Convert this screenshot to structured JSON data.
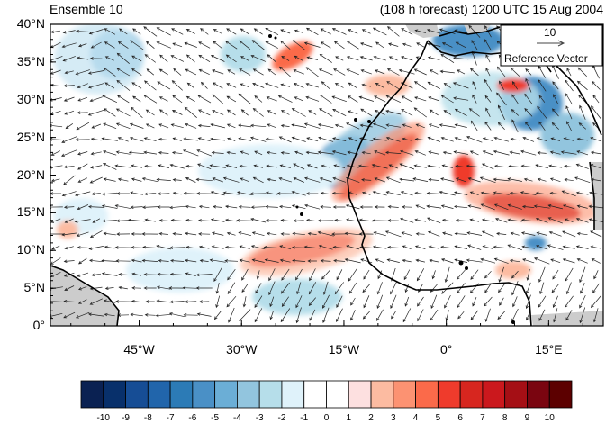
{
  "header": {
    "left": "Ensemble 10",
    "right": "(108 h forecast) 1200 UTC 15 Aug 2004"
  },
  "map": {
    "lon_range": [
      -58,
      23
    ],
    "lat_range": [
      0,
      40
    ],
    "lat_ticks": [
      "0°",
      "5°N",
      "10°N",
      "15°N",
      "20°N",
      "25°N",
      "30°N",
      "35°N",
      "40°N"
    ],
    "lon_ticks": [
      "45°W",
      "30°W",
      "15°W",
      "0°",
      "15°E"
    ],
    "land_color": "#cccccc",
    "coast_color": "#000000",
    "arrow_color": "#222222"
  },
  "reference_vector": {
    "magnitude": "10",
    "label": "Reference Vector"
  },
  "colorbar": {
    "labels": [
      "-10",
      "-9",
      "-8",
      "-7",
      "-6",
      "-5",
      "-4",
      "-3",
      "-2",
      "-1",
      "0",
      "1",
      "2",
      "3",
      "4",
      "5",
      "6",
      "7",
      "8",
      "9",
      "10"
    ],
    "colors": [
      "#0a2152",
      "#08306b",
      "#164d95",
      "#2165ab",
      "#2c7bb6",
      "#4a90c6",
      "#6baed6",
      "#92c5de",
      "#b6deea",
      "#dff2fa",
      "#ffffff",
      "#ffffff",
      "#fde0e0",
      "#fcbba1",
      "#fc9272",
      "#fb6a4a",
      "#ef3b2c",
      "#d7261f",
      "#cb181d",
      "#a50f15",
      "#7a0510",
      "#5c0000"
    ]
  }
}
